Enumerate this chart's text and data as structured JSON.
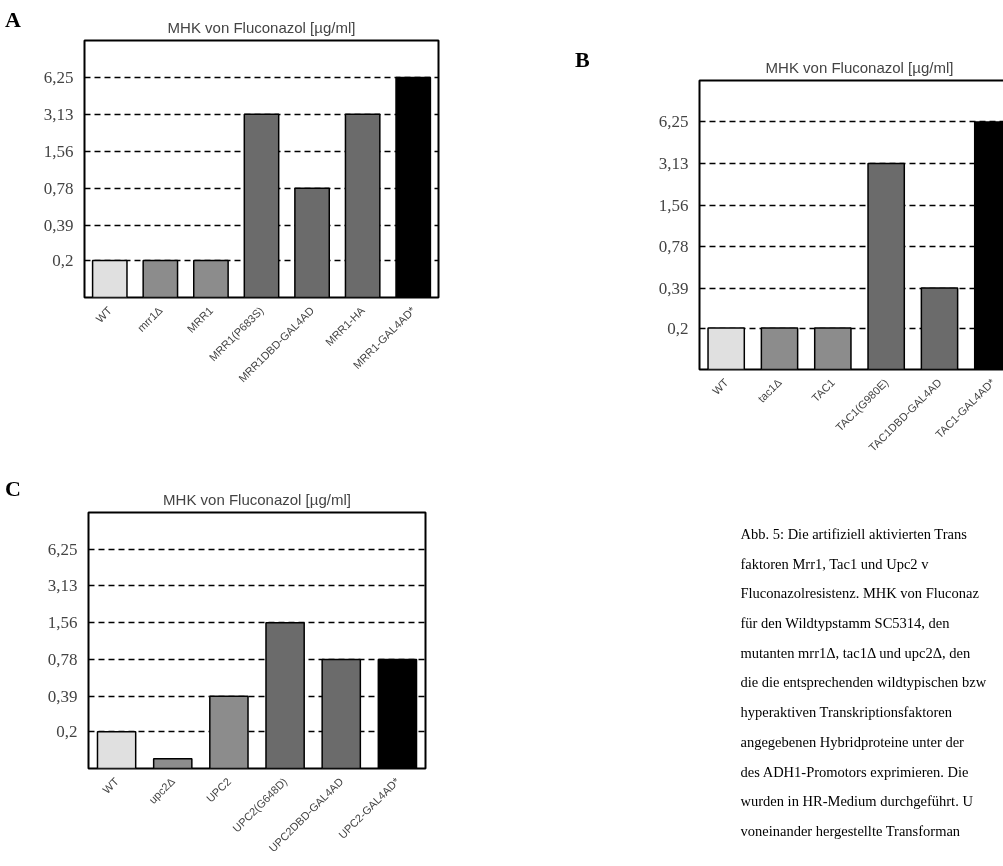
{
  "chart_data": [
    {
      "type": "bar",
      "title": "MHK von Fluconazol [µg/ml]",
      "annotations": [
        "A"
      ],
      "categories": [
        "WT",
        "mrr1Δ",
        "MRR1",
        "MRR1(P683S)",
        "MRR1DBD-GAL4AD",
        "MRR1-HA",
        "MRR1-GAL4AD*"
      ],
      "values": [
        0.2,
        0.2,
        0.2,
        3.13,
        0.78,
        3.13,
        6.25
      ],
      "colors": [
        "#e0e0e0",
        "#8c8c8c",
        "#8c8c8c",
        "#6b6b6b",
        "#6b6b6b",
        "#6b6b6b",
        "#000000"
      ],
      "log": true,
      "ylim": [
        0.1,
        12.5
      ],
      "yticks": [
        {
          "value": 0.2,
          "label": "0,2"
        },
        {
          "value": 0.39,
          "label": "0,39"
        },
        {
          "value": 0.78,
          "label": "0,78"
        },
        {
          "value": 1.56,
          "label": "1,56"
        },
        {
          "value": 3.13,
          "label": "3,13"
        },
        {
          "value": 6.25,
          "label": "6,25"
        }
      ],
      "grid": "y"
    },
    {
      "type": "bar",
      "title": "MHK von Fluconazol [µg/ml]",
      "annotations": [
        "B"
      ],
      "categories": [
        "WT",
        "tac1Δ",
        "TAC1",
        "TAC1(G980E)",
        "TAC1DBD-GAL4AD",
        "TAC1-GAL4AD*"
      ],
      "values": [
        0.2,
        0.2,
        0.2,
        3.13,
        0.39,
        6.25
      ],
      "colors": [
        "#e0e0e0",
        "#8c8c8c",
        "#8c8c8c",
        "#6b6b6b",
        "#6b6b6b",
        "#000000"
      ],
      "log": true,
      "ylim": [
        0.1,
        12.5
      ],
      "yticks": [
        {
          "value": 0.2,
          "label": "0,2"
        },
        {
          "value": 0.39,
          "label": "0,39"
        },
        {
          "value": 0.78,
          "label": "0,78"
        },
        {
          "value": 1.56,
          "label": "1,56"
        },
        {
          "value": 3.13,
          "label": "3,13"
        },
        {
          "value": 6.25,
          "label": "6,25"
        }
      ],
      "grid": "y"
    },
    {
      "type": "bar",
      "title": "MHK von Fluconazol [µg/ml]",
      "annotations": [
        "C"
      ],
      "categories": [
        "WT",
        "upc2Δ",
        "UPC2",
        "UPC2(G648D)",
        "UPC2DBD-GAL4AD",
        "UPC2-GAL4AD*"
      ],
      "values": [
        0.2,
        0.12,
        0.39,
        1.56,
        0.78,
        0.78
      ],
      "colors": [
        "#e0e0e0",
        "#8c8c8c",
        "#8c8c8c",
        "#6b6b6b",
        "#6b6b6b",
        "#000000"
      ],
      "log": true,
      "ylim": [
        0.1,
        12.5
      ],
      "yticks": [
        {
          "value": 0.2,
          "label": "0,2"
        },
        {
          "value": 0.39,
          "label": "0,39"
        },
        {
          "value": 0.78,
          "label": "0,78"
        },
        {
          "value": 1.56,
          "label": "1,56"
        },
        {
          "value": 3.13,
          "label": "3,13"
        },
        {
          "value": 6.25,
          "label": "6,25"
        }
      ],
      "grid": "y"
    },
    {
      "type": "other",
      "annotations": [
        "Abb. 5: Die artifiziell aktivierten Trans",
        "faktoren Mrr1, Tac1 und Upc2 v",
        "Fluconazolresistenz. MHK von Fluconaz",
        "für den Wildtypstamm SC5314, den",
        "mutanten mrr1Δ, tac1Δ und upc2Δ, den",
        "die die entsprechenden wildtypischen bzw",
        "hyperaktiven Transkriptionsfaktoren",
        "angegebenen Hybridproteine unter der",
        "des ADH1-Promotors exprimieren. Die",
        "wurden in HR-Medium durchgeführt. U",
        "voneinander hergestellte Transforman"
      ]
    }
  ]
}
